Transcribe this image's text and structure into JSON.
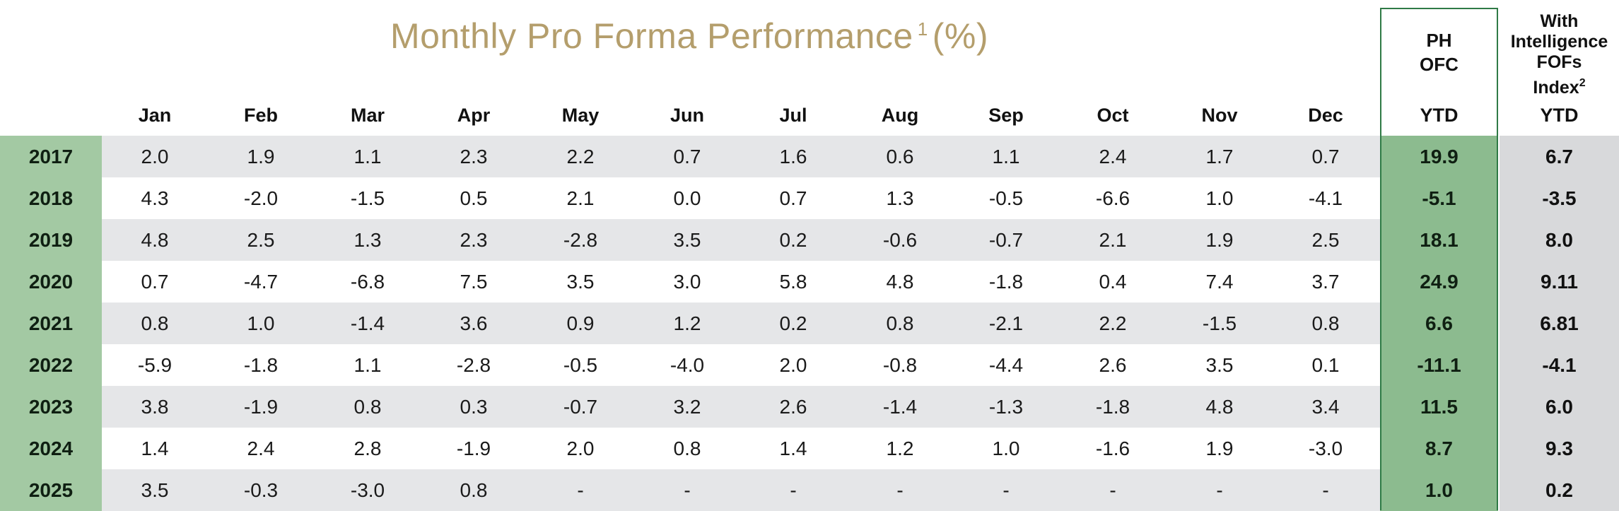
{
  "title": {
    "main": "Monthly Pro Forma Performance",
    "footnote": "1",
    "unit": "(%)"
  },
  "headers": {
    "ph_ofc": [
      "PH",
      "OFC"
    ],
    "with_index": [
      "With",
      "Intelligence",
      "FOFs",
      "Index"
    ],
    "with_index_footnote": "2",
    "months": [
      "Jan",
      "Feb",
      "Mar",
      "Apr",
      "May",
      "Jun",
      "Jul",
      "Aug",
      "Sep",
      "Oct",
      "Nov",
      "Dec"
    ],
    "ytd1": "YTD",
    "ytd2": "YTD"
  },
  "rows": [
    {
      "year": "2017",
      "months": [
        "2.0",
        "1.9",
        "1.1",
        "2.3",
        "2.2",
        "0.7",
        "1.6",
        "0.6",
        "1.1",
        "2.4",
        "1.7",
        "0.7"
      ],
      "ph_ytd": "19.9",
      "idx_ytd": "6.7"
    },
    {
      "year": "2018",
      "months": [
        "4.3",
        "-2.0",
        "-1.5",
        "0.5",
        "2.1",
        "0.0",
        "0.7",
        "1.3",
        "-0.5",
        "-6.6",
        "1.0",
        "-4.1"
      ],
      "ph_ytd": "-5.1",
      "idx_ytd": "-3.5"
    },
    {
      "year": "2019",
      "months": [
        "4.8",
        "2.5",
        "1.3",
        "2.3",
        "-2.8",
        "3.5",
        "0.2",
        "-0.6",
        "-0.7",
        "2.1",
        "1.9",
        "2.5"
      ],
      "ph_ytd": "18.1",
      "idx_ytd": "8.0"
    },
    {
      "year": "2020",
      "months": [
        "0.7",
        "-4.7",
        "-6.8",
        "7.5",
        "3.5",
        "3.0",
        "5.8",
        "4.8",
        "-1.8",
        "0.4",
        "7.4",
        "3.7"
      ],
      "ph_ytd": "24.9",
      "idx_ytd": "9.11"
    },
    {
      "year": "2021",
      "months": [
        "0.8",
        "1.0",
        "-1.4",
        "3.6",
        "0.9",
        "1.2",
        "0.2",
        "0.8",
        "-2.1",
        "2.2",
        "-1.5",
        "0.8"
      ],
      "ph_ytd": "6.6",
      "idx_ytd": "6.81"
    },
    {
      "year": "2022",
      "months": [
        "-5.9",
        "-1.8",
        "1.1",
        "-2.8",
        "-0.5",
        "-4.0",
        "2.0",
        "-0.8",
        "-4.4",
        "2.6",
        "3.5",
        "0.1"
      ],
      "ph_ytd": "-11.1",
      "idx_ytd": "-4.1"
    },
    {
      "year": "2023",
      "months": [
        "3.8",
        "-1.9",
        "0.8",
        "0.3",
        "-0.7",
        "3.2",
        "2.6",
        "-1.4",
        "-1.3",
        "-1.8",
        "4.8",
        "3.4"
      ],
      "ph_ytd": "11.5",
      "idx_ytd": "6.0"
    },
    {
      "year": "2024",
      "months": [
        "1.4",
        "2.4",
        "2.8",
        "-1.9",
        "2.0",
        "0.8",
        "1.4",
        "1.2",
        "1.0",
        "-1.6",
        "1.9",
        "-3.0"
      ],
      "ph_ytd": "8.7",
      "idx_ytd": "9.3"
    },
    {
      "year": "2025",
      "months": [
        "3.5",
        "-0.3",
        "-3.0",
        "0.8",
        "-",
        "-",
        "-",
        "-",
        "-",
        "-",
        "-",
        "-"
      ],
      "ph_ytd": "1.0",
      "idx_ytd": "0.2"
    }
  ],
  "colors": {
    "title": "#b49e6c",
    "year_column": "#a3c9a3",
    "ph_ytd_column": "#8cbb8f",
    "ph_border": "#2f7a46",
    "stripe_grey": "#e5e6e8",
    "index_column": "#d8d9db"
  }
}
